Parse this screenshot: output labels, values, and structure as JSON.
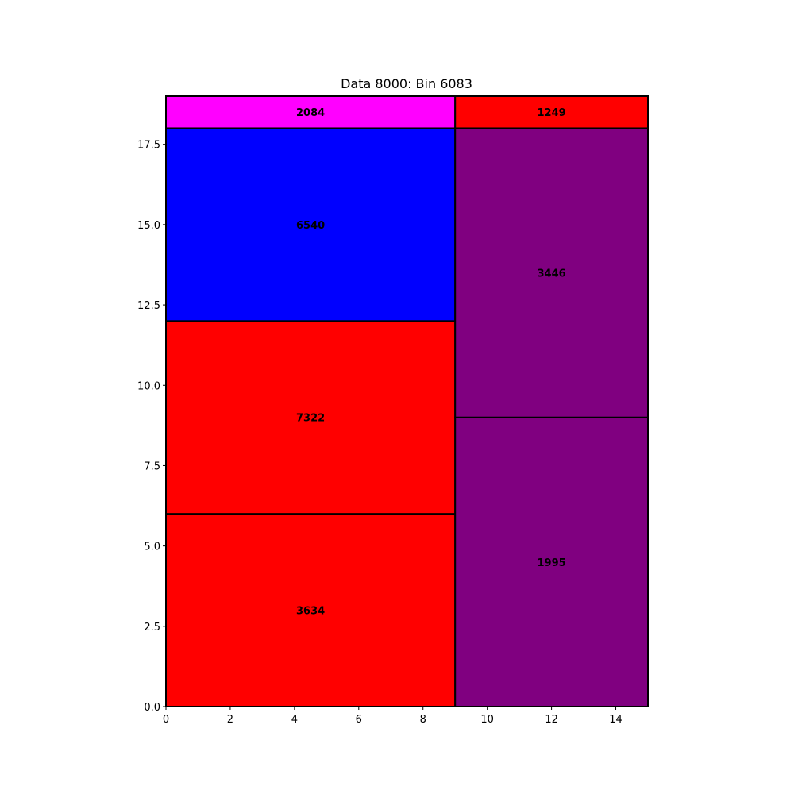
{
  "chart_data": {
    "type": "treemap",
    "title": "Data 8000: Bin 6083",
    "xlim": [
      0,
      15
    ],
    "ylim": [
      0,
      19
    ],
    "xticks": [
      0,
      2,
      4,
      6,
      8,
      10,
      12,
      14
    ],
    "xtick_labels": [
      "0",
      "2",
      "4",
      "6",
      "8",
      "10",
      "12",
      "14"
    ],
    "yticks": [
      0,
      2.5,
      5,
      7.5,
      10,
      12.5,
      15,
      17.5
    ],
    "ytick_labels": [
      "0.0",
      "2.5",
      "5.0",
      "7.5",
      "10.0",
      "12.5",
      "15.0",
      "17.5"
    ],
    "grid": false,
    "rects": [
      {
        "label": "3634",
        "x": 0,
        "y": 0,
        "w": 9,
        "h": 6,
        "color": "#ff0000"
      },
      {
        "label": "7322",
        "x": 0,
        "y": 6,
        "w": 9,
        "h": 6,
        "color": "#ff0000"
      },
      {
        "label": "6540",
        "x": 0,
        "y": 12,
        "w": 9,
        "h": 6,
        "color": "#0000ff"
      },
      {
        "label": "2084",
        "x": 0,
        "y": 18,
        "w": 9,
        "h": 1,
        "color": "#ff00ff"
      },
      {
        "label": "1995",
        "x": 9,
        "y": 0,
        "w": 6,
        "h": 9,
        "color": "#800080"
      },
      {
        "label": "3446",
        "x": 9,
        "y": 9,
        "w": 6,
        "h": 9,
        "color": "#800080"
      },
      {
        "label": "1249",
        "x": 9,
        "y": 18,
        "w": 6,
        "h": 1,
        "color": "#ff0000"
      }
    ]
  }
}
